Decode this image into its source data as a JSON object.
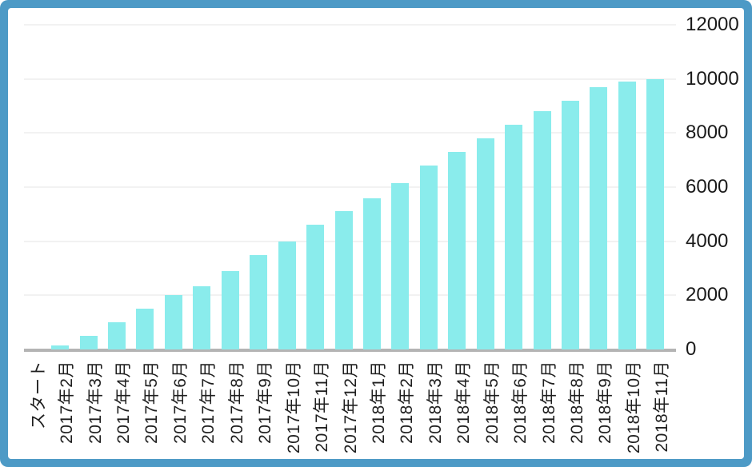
{
  "window": {
    "frame_border_color": "#4d9ac6",
    "panel_background": "#ffffff"
  },
  "chart_data": {
    "type": "bar",
    "title": "",
    "xlabel": "",
    "ylabel": "",
    "categories": [
      "スタート",
      "2017年2月",
      "2017年3月",
      "2017年4月",
      "2017年5月",
      "2017年6月",
      "2017年7月",
      "2017年8月",
      "2017年9月",
      "2017年10月",
      "2017年11月",
      "2017年12月",
      "2018年1月",
      "2018年2月",
      "2018年3月",
      "2018年4月",
      "2018年5月",
      "2018年6月",
      "2018年7月",
      "2018年8月",
      "2018年9月",
      "2018年10月",
      "2018年11月"
    ],
    "values": [
      0,
      150,
      500,
      1000,
      1500,
      2000,
      2350,
      2900,
      3500,
      4000,
      4600,
      5100,
      5600,
      6150,
      6800,
      7300,
      7800,
      8300,
      8800,
      9200,
      9700,
      9900,
      10000
    ],
    "ylim": [
      0,
      12000
    ],
    "yticks": [
      0,
      2000,
      4000,
      6000,
      8000,
      10000,
      12000
    ],
    "y_axis_side": "right",
    "x_label_rotation_deg": -90,
    "grid": "horizontal",
    "legend": "none",
    "bar_color": "#8aecec",
    "gridline_color": "#f2f2f2",
    "axis_line_color": "#b4b4b4"
  }
}
